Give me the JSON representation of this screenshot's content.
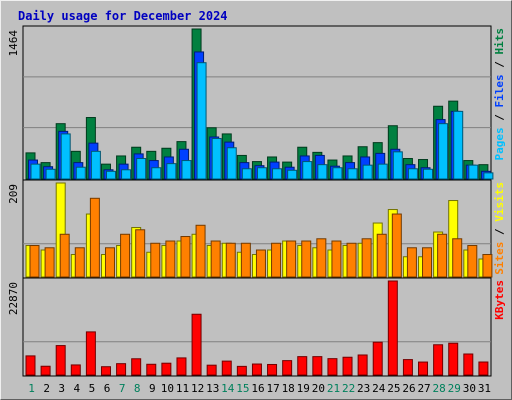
{
  "chart_data": {
    "type": "bar",
    "title": "Daily usage for December 2024",
    "days": [
      1,
      2,
      3,
      4,
      5,
      6,
      7,
      8,
      9,
      10,
      11,
      12,
      13,
      14,
      15,
      16,
      17,
      18,
      19,
      20,
      21,
      22,
      23,
      24,
      25,
      26,
      27,
      28,
      29,
      30,
      31
    ],
    "weekend_days": [
      1,
      7,
      8,
      14,
      15,
      21,
      22,
      28,
      29
    ],
    "panels": [
      {
        "id": "hits",
        "max_label": "1464",
        "ymax": 1464,
        "axis_labels": [
          {
            "text": "Pages",
            "color": "#00c0ff"
          },
          {
            "text": " / ",
            "color": "#000000"
          },
          {
            "text": "Files",
            "color": "#0040ff"
          },
          {
            "text": " / ",
            "color": "#000000"
          },
          {
            "text": "Hits",
            "color": "#008040"
          }
        ],
        "series": [
          {
            "name": "Hits",
            "color": "#008040",
            "values": [
              255,
              160,
              540,
              270,
              600,
              145,
              225,
              310,
              270,
              300,
              365,
              1464,
              500,
              440,
              230,
              170,
              215,
              165,
              310,
              260,
              185,
              225,
              315,
              355,
              520,
              200,
              190,
              710,
              760,
              180,
              140
            ]
          },
          {
            "name": "Files",
            "color": "#0040ff",
            "values": [
              185,
              120,
              465,
              160,
              350,
              90,
              145,
              245,
              180,
              215,
              290,
              1240,
              410,
              360,
              160,
              130,
              165,
              115,
              225,
              230,
              125,
              160,
              215,
              250,
              290,
              140,
              110,
              580,
              660,
              135,
              75
            ]
          },
          {
            "name": "Pages",
            "color": "#00c0ff",
            "values": [
              145,
              95,
              440,
              115,
              270,
              75,
              90,
              200,
              110,
              150,
              180,
              1135,
              395,
              305,
              100,
              110,
              100,
              85,
              170,
              140,
              110,
              100,
              135,
              145,
              265,
              100,
              95,
              540,
              660,
              135,
              60
            ]
          }
        ]
      },
      {
        "id": "visits",
        "max_label": "209",
        "ymax": 209,
        "axis_labels": [
          {
            "text": "Sites",
            "color": "#ff8000"
          },
          {
            "text": " / ",
            "color": "#000000"
          },
          {
            "text": "Visits",
            "color": "#ffff00"
          }
        ],
        "series": [
          {
            "name": "Visits",
            "color": "#ffff00",
            "values": [
              70,
              60,
              209,
              50,
              140,
              50,
              70,
              110,
              55,
              70,
              80,
              95,
              70,
              75,
              55,
              50,
              60,
              80,
              70,
              65,
              60,
              70,
              75,
              120,
              150,
              45,
              45,
              100,
              170,
              60,
              40
            ]
          },
          {
            "name": "Sites",
            "color": "#ff8000",
            "values": [
              70,
              65,
              95,
              65,
              175,
              65,
              95,
              105,
              75,
              80,
              90,
              115,
              80,
              75,
              75,
              60,
              75,
              80,
              80,
              85,
              80,
              75,
              85,
              95,
              140,
              65,
              65,
              95,
              85,
              70,
              50
            ]
          }
        ]
      },
      {
        "id": "kbytes",
        "max_label": "22870",
        "ymax": 22870,
        "axis_labels": [
          {
            "text": "KBytes",
            "color": "#ff0000"
          }
        ],
        "series": [
          {
            "name": "KBytes",
            "color": "#ff0000",
            "values": [
              4650,
              2130,
              7160,
              2450,
              10490,
              2020,
              2760,
              3950,
              2610,
              2870,
              4160,
              14780,
              2390,
              3380,
              2100,
              2670,
              2560,
              3500,
              4470,
              4470,
              3980,
              4320,
              4870,
              7980,
              22870,
              3750,
              3150,
              7360,
              7730,
              5110,
              3160
            ]
          }
        ]
      }
    ]
  }
}
